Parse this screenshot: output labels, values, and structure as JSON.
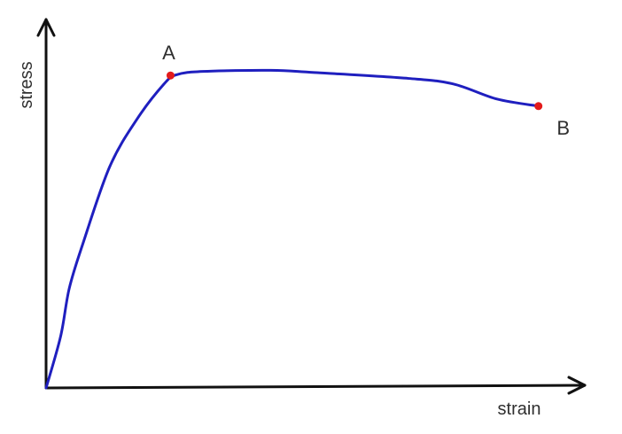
{
  "chart_data": {
    "type": "line",
    "title": "",
    "xlabel": "strain",
    "ylabel": "stress",
    "grid": false,
    "legend": "none",
    "ticks": false,
    "xlim": [
      0,
      100
    ],
    "ylim": [
      0,
      100
    ],
    "series": [
      {
        "color": "#1f1fbf",
        "points": [
          [
            0,
            0
          ],
          [
            2.7,
            14
          ],
          [
            4.3,
            27
          ],
          [
            6.8,
            39
          ],
          [
            11.8,
            60
          ],
          [
            16.9,
            73
          ],
          [
            21.9,
            82.5
          ],
          [
            24.2,
            85
          ],
          [
            29.1,
            85.9
          ],
          [
            41.7,
            86.2
          ],
          [
            49.8,
            85.6
          ],
          [
            67.3,
            84
          ],
          [
            75.6,
            82.5
          ],
          [
            83.7,
            78.4
          ],
          [
            91.4,
            76.5
          ]
        ]
      }
    ],
    "points": [
      {
        "label": "A",
        "x": 23.1,
        "y": 84.8,
        "color": "#e31b1b"
      },
      {
        "label": "B",
        "x": 91.4,
        "y": 76.5,
        "color": "#e31b1b"
      }
    ]
  }
}
